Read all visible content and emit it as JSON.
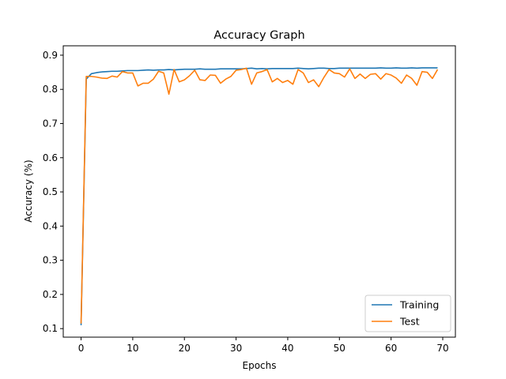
{
  "chart_data": {
    "type": "line",
    "title": "Accuracy Graph",
    "xlabel": "Epochs",
    "ylabel": "Accuracy (%)",
    "xlim": [
      -3.45,
      72.45
    ],
    "ylim": [
      0.075,
      0.9275
    ],
    "x_ticks": [
      0,
      10,
      20,
      30,
      40,
      50,
      60,
      70
    ],
    "y_ticks": [
      0.1,
      0.2,
      0.3,
      0.4,
      0.5,
      0.6,
      0.7,
      0.8,
      0.9
    ],
    "x_tick_labels": [
      "0",
      "10",
      "20",
      "30",
      "40",
      "50",
      "60",
      "70"
    ],
    "y_tick_labels": [
      "0.1",
      "0.2",
      "0.3",
      "0.4",
      "0.5",
      "0.6",
      "0.7",
      "0.8",
      "0.9"
    ],
    "grid": false,
    "legend": "bottom-right",
    "x": [
      0,
      1,
      2,
      3,
      4,
      5,
      6,
      7,
      8,
      9,
      10,
      11,
      12,
      13,
      14,
      15,
      16,
      17,
      18,
      19,
      20,
      21,
      22,
      23,
      24,
      25,
      26,
      27,
      28,
      29,
      30,
      31,
      32,
      33,
      34,
      35,
      36,
      37,
      38,
      39,
      40,
      41,
      42,
      43,
      44,
      45,
      46,
      47,
      48,
      49,
      50,
      51,
      52,
      53,
      54,
      55,
      56,
      57,
      58,
      59,
      60,
      61,
      62,
      63,
      64,
      65,
      66,
      67,
      68,
      69
    ],
    "series": [
      {
        "name": "Training",
        "color": "#1f77b4",
        "values": [
          0.11,
          0.83,
          0.846,
          0.849,
          0.851,
          0.852,
          0.853,
          0.853,
          0.854,
          0.855,
          0.855,
          0.855,
          0.856,
          0.857,
          0.856,
          0.857,
          0.857,
          0.858,
          0.857,
          0.858,
          0.859,
          0.859,
          0.859,
          0.86,
          0.859,
          0.859,
          0.859,
          0.86,
          0.86,
          0.86,
          0.86,
          0.86,
          0.861,
          0.862,
          0.86,
          0.861,
          0.86,
          0.861,
          0.861,
          0.861,
          0.861,
          0.861,
          0.862,
          0.861,
          0.86,
          0.861,
          0.862,
          0.862,
          0.861,
          0.861,
          0.862,
          0.862,
          0.862,
          0.862,
          0.862,
          0.862,
          0.862,
          0.862,
          0.863,
          0.862,
          0.862,
          0.863,
          0.862,
          0.862,
          0.863,
          0.862,
          0.863,
          0.863,
          0.863,
          0.863
        ]
      },
      {
        "name": "Test",
        "color": "#ff7f0e",
        "values": [
          0.115,
          0.838,
          0.838,
          0.836,
          0.833,
          0.832,
          0.839,
          0.836,
          0.852,
          0.848,
          0.848,
          0.81,
          0.818,
          0.818,
          0.83,
          0.853,
          0.848,
          0.786,
          0.858,
          0.822,
          0.828,
          0.84,
          0.856,
          0.828,
          0.826,
          0.842,
          0.841,
          0.818,
          0.83,
          0.838,
          0.856,
          0.858,
          0.862,
          0.815,
          0.848,
          0.852,
          0.858,
          0.822,
          0.832,
          0.82,
          0.826,
          0.815,
          0.858,
          0.848,
          0.82,
          0.828,
          0.808,
          0.835,
          0.858,
          0.848,
          0.846,
          0.836,
          0.86,
          0.832,
          0.845,
          0.832,
          0.844,
          0.846,
          0.83,
          0.846,
          0.842,
          0.833,
          0.818,
          0.842,
          0.832,
          0.812,
          0.852,
          0.85,
          0.832,
          0.858
        ]
      }
    ]
  }
}
